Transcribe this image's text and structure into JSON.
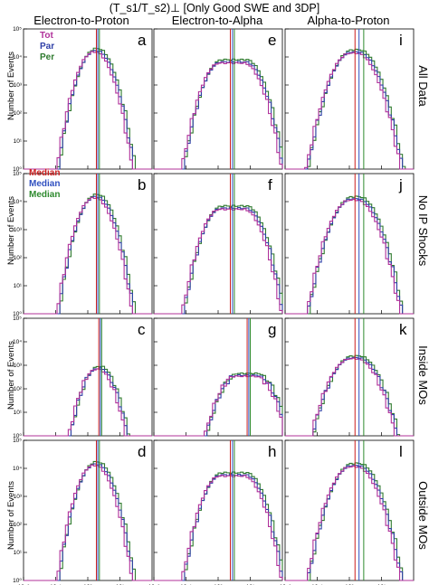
{
  "figure": {
    "title": "(T_s1/T_s2)⊥ [Only Good SWE and 3DP]",
    "columns": [
      "Electron-to-Proton",
      "Electron-to-Alpha",
      "Alpha-to-Proton"
    ],
    "rows": [
      "All Data",
      "No IP Shocks",
      "Inside MOs",
      "Outside MOs"
    ],
    "ylabel": "Number of Events",
    "series_legend": [
      "Tot",
      "Par",
      "Per"
    ],
    "median_legend": [
      "Median",
      "Median",
      "Median"
    ],
    "colors": {
      "Tot": "#b0309a",
      "Par": "#3040a8",
      "Per": "#2e7a2e",
      "Median_Tot": "#cc1f1f",
      "Median_Par": "#3050c0",
      "Median_Per": "#2e8a2e"
    }
  },
  "chart_data": {
    "type": "histogram-grid",
    "xscale": "log",
    "yscale": "log",
    "xlim": [
      0.01,
      100
    ],
    "ylim": [
      1,
      100000
    ],
    "x_ticks": [
      "10⁻²",
      "10⁻¹",
      "10⁰",
      "10¹"
    ],
    "y_ticks": [
      "10⁰",
      "10¹",
      "10²",
      "10³",
      "10⁴",
      "10⁵"
    ],
    "panels": [
      {
        "letter": "a",
        "row": 0,
        "col": 0,
        "peak_x": 1.8,
        "peak_y": 20000,
        "width": 0.42,
        "flat": 0.1,
        "medians": [
          1.85,
          2.05,
          2.3
        ]
      },
      {
        "letter": "e",
        "row": 0,
        "col": 1,
        "peak_x": 3.0,
        "peak_y": 8000,
        "width": 0.45,
        "flat": 1.5,
        "medians": [
          2.4,
          2.8,
          3.2
        ]
      },
      {
        "letter": "i",
        "row": 0,
        "col": 2,
        "peak_x": 1.5,
        "peak_y": 18000,
        "width": 0.5,
        "flat": 0.4,
        "medians": [
          1.5,
          2.0,
          2.8
        ]
      },
      {
        "letter": "b",
        "row": 1,
        "col": 0,
        "peak_x": 1.8,
        "peak_y": 18000,
        "width": 0.42,
        "flat": 0.1,
        "medians": [
          1.85,
          2.05,
          2.3
        ]
      },
      {
        "letter": "f",
        "row": 1,
        "col": 1,
        "peak_x": 3.0,
        "peak_y": 7000,
        "width": 0.45,
        "flat": 1.5,
        "medians": [
          2.4,
          2.8,
          3.2
        ]
      },
      {
        "letter": "j",
        "row": 1,
        "col": 2,
        "peak_x": 1.5,
        "peak_y": 15000,
        "width": 0.5,
        "flat": 0.4,
        "medians": [
          1.5,
          2.0,
          2.8
        ]
      },
      {
        "letter": "c",
        "row": 2,
        "col": 0,
        "peak_x": 2.2,
        "peak_y": 900,
        "width": 0.38,
        "flat": 0.1,
        "medians": [
          2.2,
          2.45,
          2.7
        ]
      },
      {
        "letter": "g",
        "row": 2,
        "col": 1,
        "peak_x": 8.0,
        "peak_y": 450,
        "width": 0.45,
        "flat": 1.2,
        "medians": [
          8.0,
          9.0,
          10.0
        ]
      },
      {
        "letter": "k",
        "row": 2,
        "col": 2,
        "peak_x": 1.5,
        "peak_y": 2500,
        "width": 0.5,
        "flat": 0.4,
        "medians": [
          1.5,
          2.0,
          2.8
        ]
      },
      {
        "letter": "d",
        "row": 3,
        "col": 0,
        "peak_x": 1.8,
        "peak_y": 17000,
        "width": 0.42,
        "flat": 0.1,
        "medians": [
          1.85,
          2.05,
          2.3
        ]
      },
      {
        "letter": "h",
        "row": 3,
        "col": 1,
        "peak_x": 3.0,
        "peak_y": 7000,
        "width": 0.45,
        "flat": 1.5,
        "medians": [
          2.4,
          2.8,
          3.2
        ]
      },
      {
        "letter": "l",
        "row": 3,
        "col": 2,
        "peak_x": 1.5,
        "peak_y": 15000,
        "width": 0.5,
        "flat": 0.4,
        "medians": [
          1.5,
          2.0,
          2.8
        ]
      }
    ]
  }
}
